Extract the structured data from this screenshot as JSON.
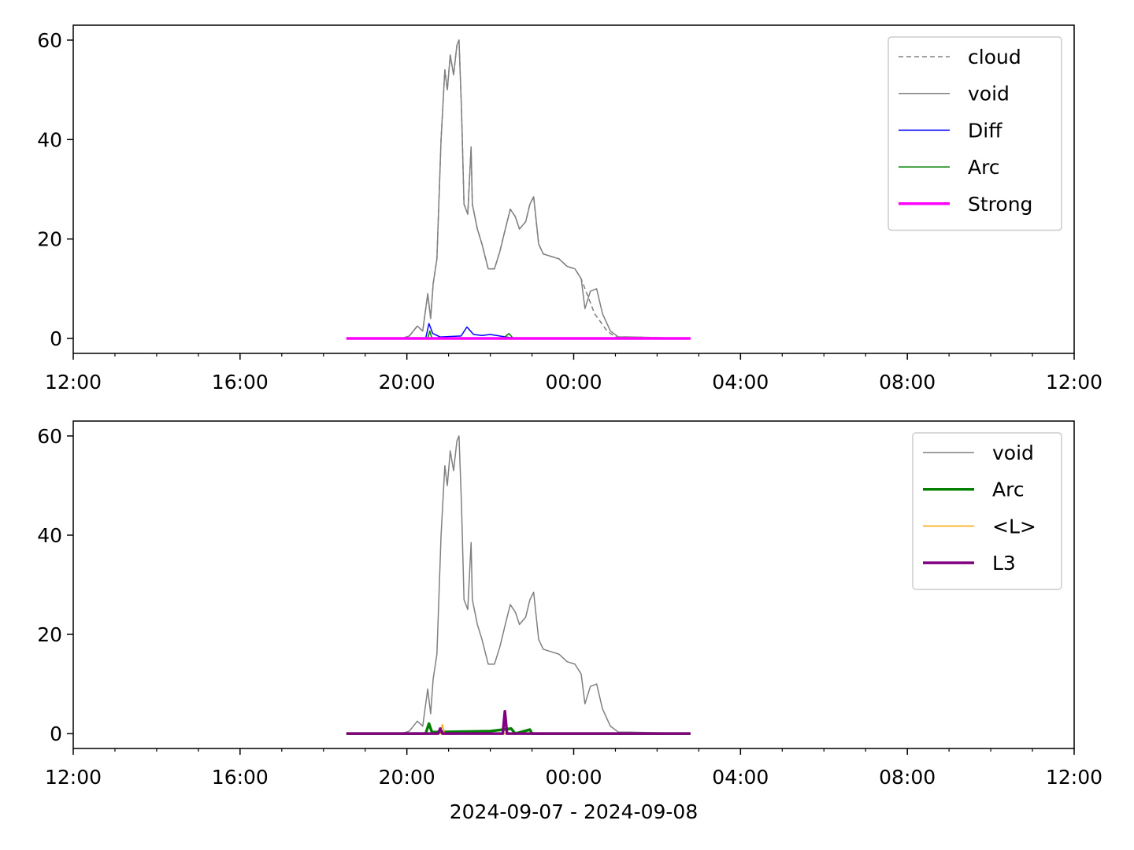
{
  "chart_data": [
    {
      "type": "line",
      "xlim": [
        0,
        24
      ],
      "ylim": [
        -3,
        63
      ],
      "xticks": [
        {
          "value": 0,
          "label": "12:00"
        },
        {
          "value": 4,
          "label": "16:00"
        },
        {
          "value": 8,
          "label": "20:00"
        },
        {
          "value": 12,
          "label": "00:00"
        },
        {
          "value": 16,
          "label": "04:00"
        },
        {
          "value": 20,
          "label": "08:00"
        },
        {
          "value": 24,
          "label": "12:00"
        }
      ],
      "xminorticks": [
        1,
        2,
        3,
        5,
        6,
        7,
        9,
        10,
        11,
        13,
        14,
        15,
        17,
        18,
        19,
        21,
        22,
        23
      ],
      "yticks": [
        0,
        20,
        40,
        60
      ],
      "legend": "upper right",
      "series": [
        {
          "name": "cloud",
          "color": "#808080",
          "linestyle": "dashed",
          "linewidth": 1.5,
          "x": [
            6.55,
            7.87,
            8.06,
            8.25,
            8.38,
            8.5,
            8.57,
            8.63,
            8.72,
            8.82,
            8.91,
            8.97,
            9.04,
            9.12,
            9.2,
            9.25,
            9.31,
            9.37,
            9.46,
            9.54,
            9.57,
            9.69,
            9.8,
            9.95,
            10.1,
            10.23,
            10.36,
            10.48,
            10.6,
            10.7,
            10.85,
            10.95,
            11.04,
            11.16,
            11.27,
            11.46,
            11.65,
            11.84,
            12.03,
            12.18,
            12.5,
            12.8,
            13.0,
            13.35,
            14.8
          ],
          "values": [
            0,
            0,
            0.5,
            2.5,
            1.5,
            9,
            4,
            11,
            16,
            40,
            54,
            50,
            57,
            53,
            59,
            60,
            46,
            27,
            25,
            38.5,
            27,
            22,
            19,
            14,
            14,
            17.5,
            22,
            26,
            24.5,
            22,
            23.5,
            27,
            28.5,
            19,
            17,
            16.5,
            16,
            14.5,
            14,
            12,
            5,
            1.5,
            0.3,
            0.3,
            0
          ]
        },
        {
          "name": "void",
          "color": "#808080",
          "linestyle": "solid",
          "linewidth": 1.5,
          "x": [
            6.55,
            7.87,
            8.06,
            8.25,
            8.38,
            8.5,
            8.57,
            8.63,
            8.72,
            8.82,
            8.91,
            8.97,
            9.04,
            9.12,
            9.2,
            9.25,
            9.31,
            9.37,
            9.46,
            9.54,
            9.57,
            9.69,
            9.8,
            9.95,
            10.1,
            10.23,
            10.36,
            10.48,
            10.6,
            10.7,
            10.85,
            10.95,
            11.04,
            11.16,
            11.27,
            11.46,
            11.65,
            11.84,
            12.03,
            12.18,
            12.27,
            12.4,
            12.55,
            12.69,
            12.88,
            13.07,
            13.35,
            14.8
          ],
          "values": [
            0,
            0,
            0.5,
            2.5,
            1.5,
            9,
            4,
            11,
            16,
            40,
            54,
            50,
            57,
            53,
            59,
            60,
            46,
            27,
            25,
            38.5,
            27,
            22,
            19,
            14,
            14,
            17.5,
            22,
            26,
            24.5,
            22,
            23.5,
            27,
            28.5,
            19,
            17,
            16.5,
            16,
            14.5,
            14,
            12,
            6,
            9.5,
            10,
            5,
            1.5,
            0.3,
            0.3,
            0
          ]
        },
        {
          "name": "Diff",
          "color": "#0000ff",
          "linestyle": "solid",
          "linewidth": 1.5,
          "x": [
            6.55,
            8.45,
            8.53,
            8.62,
            8.8,
            9.3,
            9.44,
            9.6,
            9.8,
            10.0,
            10.3,
            10.6,
            14.8
          ],
          "values": [
            0,
            0,
            3,
            1,
            0.3,
            0.5,
            2.3,
            0.8,
            0.6,
            0.8,
            0.4,
            0,
            0
          ]
        },
        {
          "name": "Arc",
          "color": "#008000",
          "linestyle": "solid",
          "linewidth": 1.5,
          "x": [
            6.55,
            8.5,
            8.55,
            8.6,
            10.3,
            10.45,
            10.55,
            14.8
          ],
          "values": [
            0,
            0,
            1.5,
            0,
            0,
            1,
            0,
            0
          ]
        },
        {
          "name": "Strong",
          "color": "#ff00ff",
          "linestyle": "solid",
          "linewidth": 3.5,
          "x": [
            6.55,
            14.8
          ],
          "values": [
            0,
            0
          ]
        }
      ]
    },
    {
      "type": "line",
      "xlabel": "2024-09-07 - 2024-09-08",
      "xlim": [
        0,
        24
      ],
      "ylim": [
        -3,
        63
      ],
      "xticks": [
        {
          "value": 0,
          "label": "12:00"
        },
        {
          "value": 4,
          "label": "16:00"
        },
        {
          "value": 8,
          "label": "20:00"
        },
        {
          "value": 12,
          "label": "00:00"
        },
        {
          "value": 16,
          "label": "04:00"
        },
        {
          "value": 20,
          "label": "08:00"
        },
        {
          "value": 24,
          "label": "12:00"
        }
      ],
      "xminorticks": [
        1,
        2,
        3,
        5,
        6,
        7,
        9,
        10,
        11,
        13,
        14,
        15,
        17,
        18,
        19,
        21,
        22,
        23
      ],
      "yticks": [
        0,
        20,
        40,
        60
      ],
      "legend": "upper right",
      "series": [
        {
          "name": "void",
          "color": "#808080",
          "linestyle": "solid",
          "linewidth": 1.5,
          "x": [
            6.55,
            7.87,
            8.06,
            8.25,
            8.38,
            8.5,
            8.57,
            8.63,
            8.72,
            8.82,
            8.91,
            8.97,
            9.04,
            9.12,
            9.2,
            9.25,
            9.31,
            9.37,
            9.46,
            9.54,
            9.57,
            9.69,
            9.8,
            9.95,
            10.1,
            10.23,
            10.36,
            10.48,
            10.6,
            10.7,
            10.85,
            10.95,
            11.04,
            11.16,
            11.27,
            11.46,
            11.65,
            11.84,
            12.03,
            12.18,
            12.27,
            12.4,
            12.55,
            12.69,
            12.88,
            13.07,
            13.35,
            14.8
          ],
          "values": [
            0,
            0,
            0.5,
            2.5,
            1.5,
            9,
            4,
            11,
            16,
            40,
            54,
            50,
            57,
            53,
            59,
            60,
            46,
            27,
            25,
            38.5,
            27,
            22,
            19,
            14,
            14,
            17.5,
            22,
            26,
            24.5,
            22,
            23.5,
            27,
            28.5,
            19,
            17,
            16.5,
            16,
            14.5,
            14,
            12,
            6,
            9.5,
            10,
            5,
            1.5,
            0.3,
            0.3,
            0
          ]
        },
        {
          "name": "Arc",
          "color": "#008000",
          "linestyle": "solid",
          "linewidth": 3.5,
          "x": [
            6.55,
            8.45,
            8.53,
            8.6,
            10.0,
            10.5,
            10.6,
            10.95,
            11.0,
            14.8
          ],
          "values": [
            0,
            0,
            2,
            0.3,
            0.5,
            1,
            0,
            0.8,
            0,
            0
          ]
        },
        {
          "name": "<L>",
          "color": "#ffa500",
          "linestyle": "solid",
          "linewidth": 1.5,
          "x": [
            6.55,
            8.8,
            8.85,
            8.9,
            14.8
          ],
          "values": [
            0,
            0,
            1.8,
            0,
            0
          ]
        },
        {
          "name": "L3",
          "color": "#800080",
          "linestyle": "solid",
          "linewidth": 3.5,
          "x": [
            6.55,
            8.75,
            8.8,
            8.85,
            10.3,
            10.35,
            10.4,
            14.8
          ],
          "values": [
            0,
            0,
            1,
            0,
            0,
            4.5,
            0,
            0
          ]
        }
      ]
    }
  ]
}
